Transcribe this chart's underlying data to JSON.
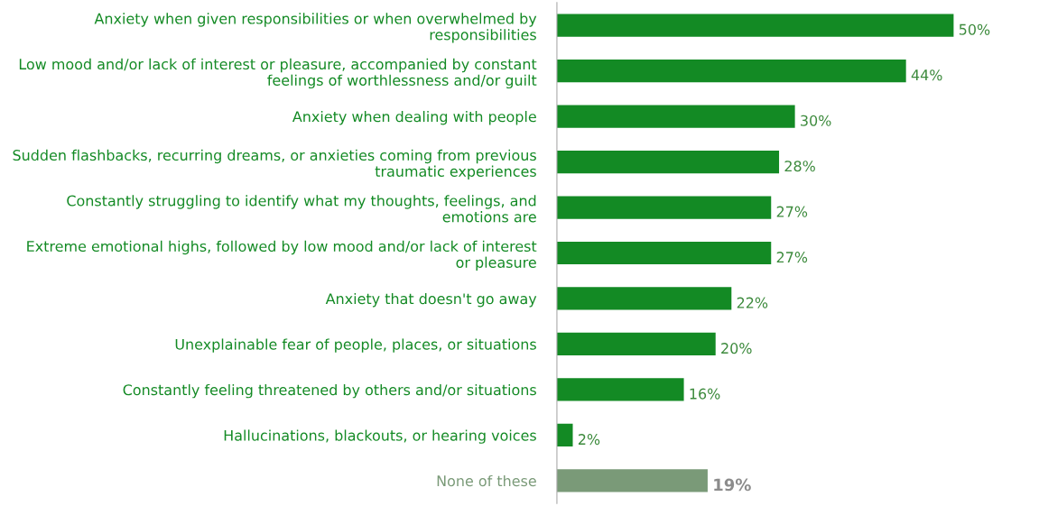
{
  "chart_data": {
    "type": "bar",
    "orientation": "horizontal",
    "categories": [
      "Anxiety when given responsibilities or when overwhelmed by\nresponsibilities",
      "Low mood and/or lack of interest or pleasure, accompanied by constant\nfeelings of worthlessness and/or guilt",
      "Anxiety when dealing with people",
      "Sudden flashbacks, recurring dreams, or anxieties coming from previous\ntraumatic experiences",
      "Constantly struggling to identify what my thoughts, feelings, and\nemotions are",
      "Extreme emotional highs, followed by low mood and/or lack of interest\nor pleasure",
      "Anxiety that doesn't go away",
      "Unexplainable fear of people, places, or situations",
      "Constantly feeling threatened by others and/or situations",
      "Hallucinations, blackouts, or hearing voices",
      "None of these"
    ],
    "values": [
      50,
      44,
      30,
      28,
      27,
      27,
      22,
      20,
      16,
      2,
      19
    ],
    "colors": [
      "#138a24",
      "#138a24",
      "#138a24",
      "#138a24",
      "#138a24",
      "#138a24",
      "#138a24",
      "#138a24",
      "#138a24",
      "#138a24",
      "#7a9a78"
    ],
    "value_labels": [
      "50%",
      "44%",
      "30%",
      "28%",
      "27%",
      "27%",
      "22%",
      "20%",
      "16%",
      "2%",
      "19%"
    ],
    "grid": false,
    "legend": false
  }
}
